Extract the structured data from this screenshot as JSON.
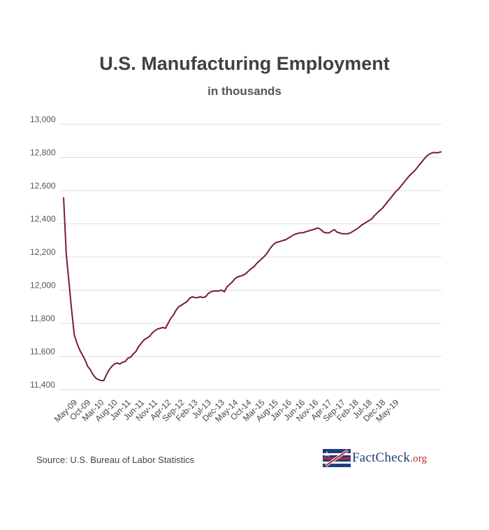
{
  "title": "U.S. Manufacturing Employment",
  "subtitle": "in thousands",
  "source": "Source: U.S. Bureau of Labor Statistics",
  "logo": {
    "text_main": "FactCheck",
    "text_org": ".org",
    "colors": {
      "blue": "#1f3d79",
      "red": "#b32b36"
    }
  },
  "chart_data": {
    "type": "line",
    "title": "U.S. Manufacturing Employment",
    "subtitle": "in thousands",
    "xlabel": "",
    "ylabel": "",
    "ylim": [
      11400,
      13000
    ],
    "yticks": [
      11400,
      11600,
      11800,
      12000,
      12200,
      12400,
      12600,
      12800,
      13000
    ],
    "ytick_labels": [
      "11,400",
      "11,600",
      "11,800",
      "12,000",
      "12,200",
      "12,400",
      "12,600",
      "12,800",
      "13,000"
    ],
    "xtick_labels": [
      "May-09",
      "Oct-09",
      "Mar-10",
      "Aug-10",
      "Jan-11",
      "Jun-11",
      "Nov-11",
      "Apr-12",
      "Sep-12",
      "Feb-13",
      "Jul-13",
      "Dec-13",
      "May-14",
      "Oct-14",
      "Mar-15",
      "Aug-15",
      "Jan-16",
      "Jun-16",
      "Nov-16",
      "Apr-17",
      "Sep-17",
      "Feb-18",
      "Jul-18",
      "Dec-18",
      "May-19"
    ],
    "grid": true,
    "line_color": "#7a1a38",
    "series": [
      {
        "x_start": "May-09",
        "frequency": "monthly",
        "values": [
          12560,
          12220,
          12050,
          11880,
          11730,
          11680,
          11640,
          11610,
          11580,
          11540,
          11520,
          11490,
          11470,
          11460,
          11455,
          11455,
          11490,
          11520,
          11540,
          11555,
          11560,
          11555,
          11565,
          11570,
          11590,
          11595,
          11615,
          11630,
          11660,
          11680,
          11700,
          11710,
          11720,
          11740,
          11755,
          11765,
          11770,
          11775,
          11770,
          11800,
          11830,
          11850,
          11880,
          11900,
          11910,
          11920,
          11930,
          11950,
          11960,
          11955,
          11955,
          11960,
          11955,
          11960,
          11980,
          11990,
          11995,
          11995,
          11995,
          12000,
          11990,
          12020,
          12035,
          12050,
          12070,
          12080,
          12085,
          12090,
          12100,
          12115,
          12130,
          12140,
          12160,
          12175,
          12190,
          12205,
          12225,
          12250,
          12270,
          12285,
          12290,
          12295,
          12300,
          12305,
          12315,
          12325,
          12335,
          12340,
          12345,
          12345,
          12350,
          12355,
          12360,
          12365,
          12370,
          12375,
          12365,
          12350,
          12345,
          12345,
          12355,
          12365,
          12350,
          12345,
          12340,
          12340,
          12340,
          12345,
          12355,
          12365,
          12375,
          12390,
          12400,
          12410,
          12420,
          12430,
          12450,
          12465,
          12480,
          12495,
          12515,
          12535,
          12555,
          12575,
          12595,
          12610,
          12630,
          12650,
          12670,
          12690,
          12705,
          12720,
          12740,
          12760,
          12780,
          12800,
          12815,
          12825,
          12830,
          12828,
          12830,
          12835
        ]
      }
    ]
  }
}
